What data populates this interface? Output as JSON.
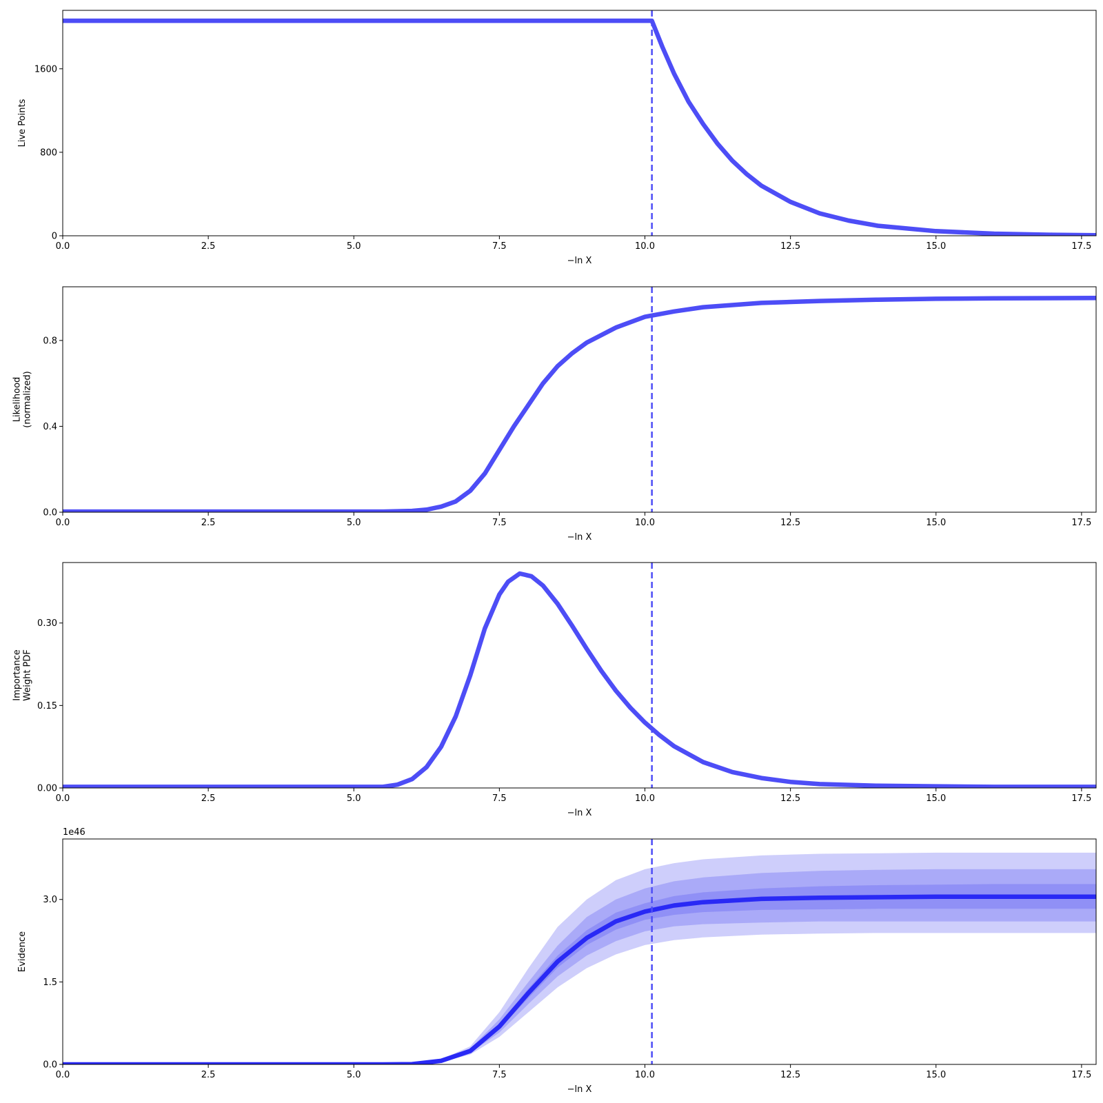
{
  "chart_data": [
    {
      "type": "line",
      "ylabel": [
        "Live Points"
      ],
      "xlabel": "−ln X",
      "xlim": [
        0,
        17.75
      ],
      "ylim": [
        0,
        2160
      ],
      "xticks": [
        0,
        2.5,
        5,
        7.5,
        10,
        12.5,
        15,
        17.5
      ],
      "xtick_labels": [
        "0.0",
        "2.5",
        "5.0",
        "7.5",
        "10.0",
        "12.5",
        "15.0",
        "17.5"
      ],
      "yticks": [
        0,
        800,
        1600
      ],
      "ytick_labels": [
        "0",
        "800",
        "1600"
      ],
      "vline_x": 10.12,
      "series": [
        {
          "color": "#4d4df6",
          "x": [
            0,
            10.12,
            10.3,
            10.5,
            10.75,
            11,
            11.25,
            11.5,
            11.75,
            12,
            12.5,
            13,
            13.5,
            14,
            15,
            16,
            17,
            17.75
          ],
          "y": [
            2060,
            2060,
            1810,
            1555,
            1285,
            1070,
            880,
            720,
            590,
            480,
            325,
            215,
            145,
            96,
            44,
            20,
            9,
            5
          ]
        }
      ]
    },
    {
      "type": "line",
      "ylabel": [
        "Likelihood",
        "(normalized)"
      ],
      "xlabel": "−ln X",
      "xlim": [
        0,
        17.75
      ],
      "ylim": [
        0,
        1.05
      ],
      "xticks": [
        0,
        2.5,
        5,
        7.5,
        10,
        12.5,
        15,
        17.5
      ],
      "xtick_labels": [
        "0.0",
        "2.5",
        "5.0",
        "7.5",
        "10.0",
        "12.5",
        "15.0",
        "17.5"
      ],
      "yticks": [
        0,
        0.4,
        0.8
      ],
      "ytick_labels": [
        "0.0",
        "0.4",
        "0.8"
      ],
      "vline_x": 10.12,
      "series": [
        {
          "color": "#4d4df6",
          "x": [
            0,
            5.5,
            6,
            6.25,
            6.5,
            6.75,
            7,
            7.25,
            7.5,
            7.75,
            8,
            8.25,
            8.5,
            8.75,
            9,
            9.5,
            10,
            10.5,
            11,
            12,
            13,
            14,
            15,
            16,
            17.75
          ],
          "y": [
            0.003,
            0.003,
            0.006,
            0.012,
            0.026,
            0.05,
            0.1,
            0.18,
            0.29,
            0.4,
            0.5,
            0.6,
            0.68,
            0.74,
            0.79,
            0.86,
            0.91,
            0.935,
            0.955,
            0.975,
            0.984,
            0.99,
            0.994,
            0.996,
            0.998
          ]
        }
      ]
    },
    {
      "type": "line",
      "ylabel": [
        "Importance",
        "Weight PDF"
      ],
      "xlabel": "−ln X",
      "xlim": [
        0,
        17.75
      ],
      "ylim": [
        0,
        0.41
      ],
      "xticks": [
        0,
        2.5,
        5,
        7.5,
        10,
        12.5,
        15,
        17.5
      ],
      "xtick_labels": [
        "0.0",
        "2.5",
        "5.0",
        "7.5",
        "10.0",
        "12.5",
        "15.0",
        "17.5"
      ],
      "yticks": [
        0,
        0.15,
        0.3
      ],
      "ytick_labels": [
        "0.00",
        "0.15",
        "0.30"
      ],
      "vline_x": 10.12,
      "series": [
        {
          "color": "#4d4df6",
          "x": [
            0,
            5.5,
            5.75,
            6,
            6.25,
            6.5,
            6.75,
            7,
            7.25,
            7.5,
            7.65,
            7.85,
            8.05,
            8.25,
            8.5,
            8.75,
            9,
            9.25,
            9.5,
            9.75,
            10,
            10.25,
            10.5,
            11,
            11.5,
            12,
            12.5,
            13,
            14,
            15,
            16,
            17.75
          ],
          "y": [
            0.002,
            0.002,
            0.006,
            0.016,
            0.038,
            0.075,
            0.13,
            0.205,
            0.29,
            0.352,
            0.375,
            0.39,
            0.385,
            0.368,
            0.335,
            0.295,
            0.253,
            0.213,
            0.177,
            0.146,
            0.119,
            0.096,
            0.076,
            0.047,
            0.029,
            0.018,
            0.011,
            0.007,
            0.004,
            0.003,
            0.002,
            0.002
          ]
        }
      ]
    },
    {
      "type": "line",
      "ylabel": [
        "Evidence"
      ],
      "xlabel": "−ln X",
      "offset_label": "1e46",
      "xlim": [
        0,
        17.75
      ],
      "ylim": [
        0,
        4.1
      ],
      "xticks": [
        0,
        2.5,
        5,
        7.5,
        10,
        12.5,
        15,
        17.5
      ],
      "xtick_labels": [
        "0.0",
        "2.5",
        "5.0",
        "7.5",
        "10.0",
        "12.5",
        "15.0",
        "17.5"
      ],
      "yticks": [
        0,
        1.5,
        3
      ],
      "ytick_labels": [
        "0.0",
        "1.5",
        "3.0"
      ],
      "vline_x": 10.12,
      "bands": [
        {
          "x": [
            0,
            5.5,
            6,
            6.5,
            7,
            7.5,
            8,
            8.5,
            9,
            9.5,
            10,
            10.5,
            11,
            12,
            13,
            14,
            15,
            16,
            17.75
          ],
          "lower": [
            0,
            0,
            0.003,
            0.04,
            0.18,
            0.5,
            0.95,
            1.4,
            1.75,
            2.0,
            2.17,
            2.26,
            2.31,
            2.36,
            2.38,
            2.39,
            2.39,
            2.39,
            2.39
          ],
          "upper": [
            0.001,
            0.001,
            0.008,
            0.09,
            0.33,
            0.95,
            1.75,
            2.5,
            3.0,
            3.35,
            3.55,
            3.66,
            3.73,
            3.8,
            3.83,
            3.84,
            3.85,
            3.85,
            3.85
          ]
        },
        {
          "x": [
            0,
            5.5,
            6,
            6.5,
            7,
            7.5,
            8,
            8.5,
            9,
            9.5,
            10,
            10.5,
            11,
            12,
            13,
            14,
            15,
            16,
            17.75
          ],
          "lower": [
            0,
            0,
            0.004,
            0.05,
            0.21,
            0.58,
            1.1,
            1.6,
            1.98,
            2.24,
            2.42,
            2.51,
            2.55,
            2.58,
            2.6,
            2.6,
            2.6,
            2.6,
            2.6
          ],
          "upper": [
            0.001,
            0.001,
            0.007,
            0.08,
            0.29,
            0.82,
            1.5,
            2.16,
            2.68,
            3.0,
            3.2,
            3.33,
            3.4,
            3.48,
            3.52,
            3.54,
            3.55,
            3.55,
            3.55
          ]
        },
        {
          "x": [
            0,
            5.5,
            6,
            6.5,
            7,
            7.5,
            8,
            8.5,
            9,
            9.5,
            10,
            10.5,
            11,
            12,
            13,
            14,
            15,
            16,
            17.75
          ],
          "lower": [
            0,
            0,
            0.005,
            0.06,
            0.23,
            0.64,
            1.21,
            1.76,
            2.17,
            2.45,
            2.63,
            2.72,
            2.77,
            2.81,
            2.82,
            2.83,
            2.83,
            2.83,
            2.83
          ],
          "upper": [
            0.001,
            0.001,
            0.006,
            0.07,
            0.26,
            0.74,
            1.38,
            1.98,
            2.44,
            2.76,
            2.93,
            3.06,
            3.13,
            3.2,
            3.24,
            3.26,
            3.27,
            3.28,
            3.28
          ]
        }
      ],
      "series": [
        {
          "color": "#2929f5",
          "x": [
            0,
            5.5,
            6,
            6.5,
            7,
            7.5,
            8,
            8.5,
            9,
            9.5,
            10,
            10.5,
            11,
            12,
            13,
            14,
            15,
            16,
            17.75
          ],
          "y": [
            0,
            0,
            0.005,
            0.065,
            0.245,
            0.69,
            1.3,
            1.87,
            2.3,
            2.6,
            2.78,
            2.89,
            2.95,
            3.01,
            3.03,
            3.04,
            3.05,
            3.05,
            3.05
          ]
        }
      ]
    }
  ],
  "colors": {
    "line": "#4d4df6",
    "evidence_line": "#2929f5",
    "band_fill": "#5050f0",
    "vline": "#4d4df6"
  }
}
